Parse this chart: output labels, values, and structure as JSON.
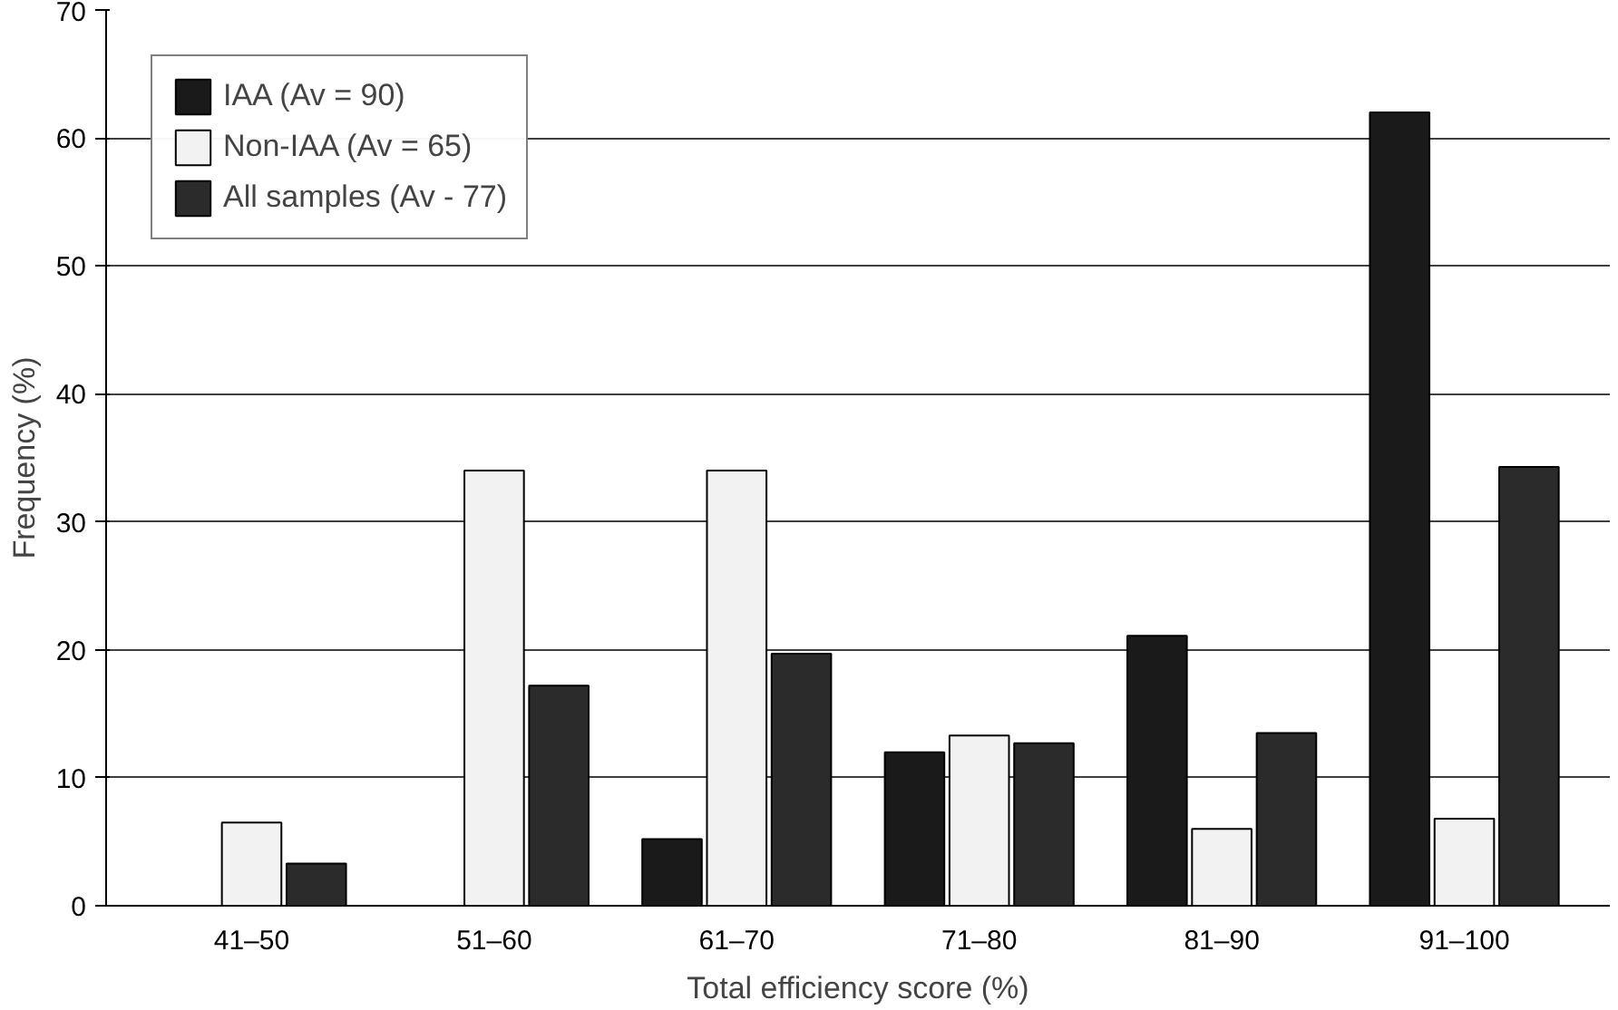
{
  "chart_data": {
    "type": "bar",
    "xlabel": "Total efficiency score (%)",
    "ylabel": "Frequency (%)",
    "categories": [
      "41–50",
      "51–60",
      "61–70",
      "71–80",
      "81–90",
      "91–100"
    ],
    "series": [
      {
        "name": "IAA (Av = 90)",
        "color": "#1a1a1a",
        "values": [
          null,
          null,
          5.2,
          12,
          21.1,
          62
        ]
      },
      {
        "name": "Non-IAA (Av = 65)",
        "color": "#f2f2f2",
        "values": [
          6.5,
          34,
          34,
          13.3,
          6,
          6.8
        ]
      },
      {
        "name": "All samples (Av - 77)",
        "color": "#2b2b2b",
        "values": [
          3.3,
          17.2,
          19.7,
          12.7,
          13.5,
          34.3
        ]
      }
    ],
    "ylim": [
      0,
      70
    ],
    "yticks": [
      0,
      10,
      20,
      30,
      40,
      50,
      60,
      70
    ],
    "grid": "y",
    "legend": "top left"
  }
}
